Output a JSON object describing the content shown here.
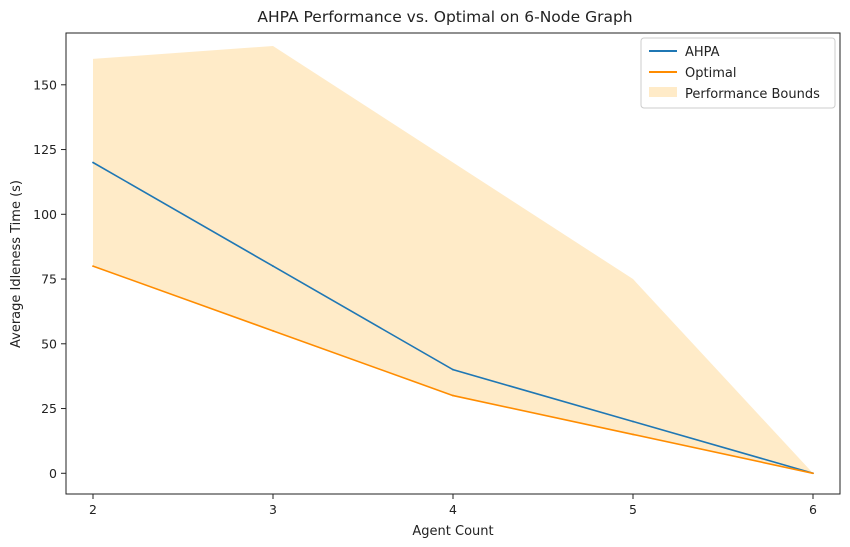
{
  "chart_data": {
    "type": "line",
    "title": "AHPA Performance vs. Optimal on 6-Node Graph",
    "xlabel": "Agent Count",
    "ylabel": "Average Idleness Time (s)",
    "x": [
      2,
      3,
      4,
      5,
      6
    ],
    "x_ticks": [
      "2",
      "3",
      "4",
      "5",
      "6"
    ],
    "y_ticks": [
      0,
      25,
      50,
      75,
      100,
      125,
      150
    ],
    "xlim": [
      1.85,
      6.15
    ],
    "ylim": [
      -8,
      170
    ],
    "series": [
      {
        "name": "AHPA",
        "values": [
          120,
          80,
          40,
          20,
          0
        ],
        "color": "#1f77b4"
      },
      {
        "name": "Optimal",
        "values": [
          80,
          55,
          30,
          15,
          0
        ],
        "color": "#ff8c00"
      }
    ],
    "band": {
      "name": "Performance Bounds",
      "lower": [
        80,
        55,
        30,
        15,
        0
      ],
      "upper": [
        160,
        165,
        120,
        75,
        0
      ],
      "color": "#ffe4b5"
    },
    "legend": {
      "placement": "top-right",
      "entries": [
        "AHPA",
        "Optimal",
        "Performance Bounds"
      ]
    },
    "grid": false
  }
}
